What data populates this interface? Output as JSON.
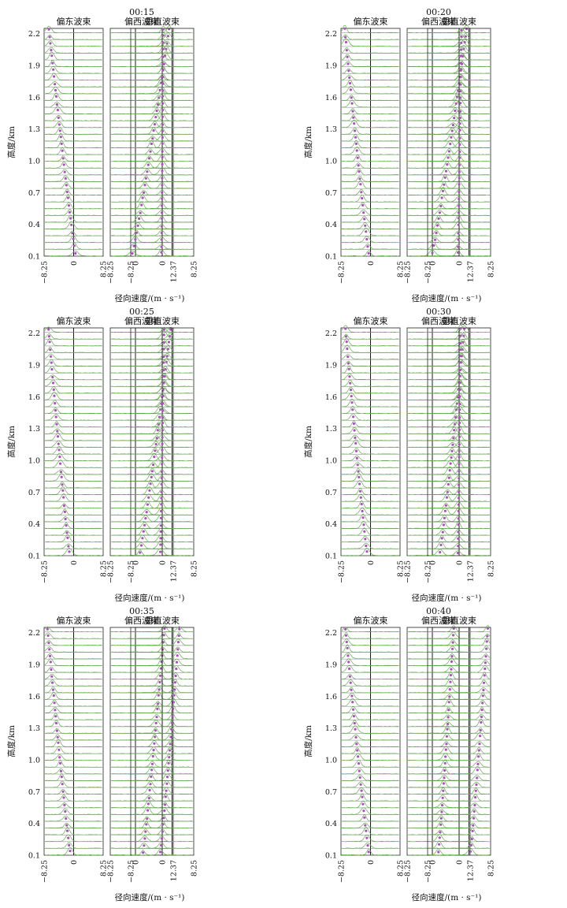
{
  "figure": {
    "left_column_title": "偏东波束",
    "middle_column_title": "偏西波束",
    "right_column_title": "垂直波束",
    "ylabel": "高度/km",
    "xlabel": "径向速度/(m · s⁻¹)"
  },
  "chart_data": [
    {
      "type": "line",
      "title": "00:15",
      "ylabel": "高度/km",
      "xlabel": "径向速度/(m · s⁻¹)",
      "height_range_km": [
        0.1,
        2.25
      ],
      "y_ticks": [
        "0.1",
        "0.4",
        "0.7",
        "1.0",
        "1.3",
        "1.6",
        "1.9",
        "2.2"
      ],
      "panels": [
        {
          "name": "偏东波束",
          "x_ticks": [
            "−8.25",
            "0",
            "8.25"
          ],
          "xlim": [
            -8.25,
            8.25
          ],
          "peak_velocity_bottom": 0.5,
          "peak_velocity_top": -6.9
        },
        {
          "name": "偏西波束",
          "x_ticks": [
            "−8.25",
            "0",
            "12.37"
          ],
          "xlim": [
            -8.25,
            12.37
          ],
          "peak_velocity_bottom": -1.0,
          "peak_velocity_top": 11.0
        },
        {
          "name": "垂直波束",
          "x_ticks": [
            "−8.25",
            "0",
            "8.25"
          ],
          "xlim": [
            -8.25,
            8.25
          ],
          "peak_velocity_bottom": -0.2,
          "peak_velocity_top": 0.3
        }
      ]
    },
    {
      "type": "line",
      "title": "00:20",
      "ylabel": "高度/km",
      "xlabel": "径向速度/(m · s⁻¹)",
      "height_range_km": [
        0.1,
        2.25
      ],
      "y_ticks": [
        "0.1",
        "0.4",
        "0.7",
        "1.0",
        "1.3",
        "1.6",
        "1.9",
        "2.2"
      ],
      "panels": [
        {
          "name": "偏东波束",
          "x_ticks": [
            "−8.25",
            "0",
            "8.25"
          ],
          "xlim": [
            -8.25,
            8.25
          ],
          "peak_velocity_bottom": -0.5,
          "peak_velocity_top": -7.2
        },
        {
          "name": "偏西波束",
          "x_ticks": [
            "−8.25",
            "0",
            "12.37"
          ],
          "xlim": [
            -8.25,
            12.37
          ],
          "peak_velocity_bottom": 0.0,
          "peak_velocity_top": 11.2
        },
        {
          "name": "垂直波束",
          "x_ticks": [
            "−8.25",
            "0",
            "8.25"
          ],
          "xlim": [
            -8.25,
            8.25
          ],
          "peak_velocity_bottom": -0.3,
          "peak_velocity_top": 0.6
        }
      ]
    },
    {
      "type": "line",
      "title": "00:25",
      "ylabel": "高度/km",
      "xlabel": "径向速度/(m · s⁻¹)",
      "height_range_km": [
        0.1,
        2.25
      ],
      "y_ticks": [
        "0.1",
        "0.4",
        "0.7",
        "1.0",
        "1.3",
        "1.6",
        "1.9",
        "2.2"
      ],
      "panels": [
        {
          "name": "偏东波束",
          "x_ticks": [
            "−8.25",
            "0",
            "8.25"
          ],
          "xlim": [
            -8.25,
            8.25
          ],
          "peak_velocity_bottom": -1.2,
          "peak_velocity_top": -7.0
        },
        {
          "name": "偏西波束",
          "x_ticks": [
            "−8.25",
            "0",
            "12.37"
          ],
          "xlim": [
            -8.25,
            12.37
          ],
          "peak_velocity_bottom": 1.5,
          "peak_velocity_top": 11.5
        },
        {
          "name": "垂直波束",
          "x_ticks": [
            "−8.25",
            "0",
            "8.25"
          ],
          "xlim": [
            -8.25,
            8.25
          ],
          "peak_velocity_bottom": -0.5,
          "peak_velocity_top": 0.5
        }
      ]
    },
    {
      "type": "line",
      "title": "00:30",
      "ylabel": "高度/km",
      "xlabel": "径向速度/(m · s⁻¹)",
      "height_range_km": [
        0.1,
        2.25
      ],
      "y_ticks": [
        "0.1",
        "0.4",
        "0.7",
        "1.0",
        "1.3",
        "1.6",
        "1.9",
        "2.2"
      ],
      "panels": [
        {
          "name": "偏东波束",
          "x_ticks": [
            "−8.25",
            "0",
            "8.25"
          ],
          "xlim": [
            -8.25,
            8.25
          ],
          "peak_velocity_bottom": -1.0,
          "peak_velocity_top": -7.0
        },
        {
          "name": "偏西波束",
          "x_ticks": [
            "−8.25",
            "0",
            "12.37"
          ],
          "xlim": [
            -8.25,
            12.37
          ],
          "peak_velocity_bottom": 2.5,
          "peak_velocity_top": 10.5
        },
        {
          "name": "垂直波束",
          "x_ticks": [
            "−8.25",
            "0",
            "8.25"
          ],
          "xlim": [
            -8.25,
            8.25
          ],
          "peak_velocity_bottom": -0.3,
          "peak_velocity_top": 0.4
        }
      ]
    },
    {
      "type": "line",
      "title": "00:35",
      "ylabel": "高度/km",
      "xlabel": "径向速度/(m · s⁻¹)",
      "height_range_km": [
        0.1,
        2.25
      ],
      "y_ticks": [
        "0.1",
        "0.4",
        "0.7",
        "1.0",
        "1.3",
        "1.6",
        "1.9",
        "2.2"
      ],
      "panels": [
        {
          "name": "偏东波束",
          "x_ticks": [
            "−8.25",
            "0",
            "8.25"
          ],
          "xlim": [
            -8.25,
            8.25
          ],
          "peak_velocity_bottom": -1.0,
          "peak_velocity_top": -7.3
        },
        {
          "name": "偏西波束",
          "x_ticks": [
            "−8.25",
            "0",
            "12.37"
          ],
          "xlim": [
            -8.25,
            12.37
          ],
          "peak_velocity_bottom": 2.5,
          "peak_velocity_top": 9.5
        },
        {
          "name": "垂直波束",
          "x_ticks": [
            "−8.25",
            "0",
            "8.25"
          ],
          "xlim": [
            -8.25,
            8.25
          ],
          "peak_velocity_bottom": -0.5,
          "peak_velocity_top": 4.5
        }
      ]
    },
    {
      "type": "line",
      "title": "00:40",
      "ylabel": "高度/km",
      "xlabel": "径向速度/(m · s⁻¹)",
      "height_range_km": [
        0.1,
        2.25
      ],
      "y_ticks": [
        "0.1",
        "0.4",
        "0.7",
        "1.0",
        "1.3",
        "1.6",
        "1.9",
        "2.2"
      ],
      "panels": [
        {
          "name": "偏东波束",
          "x_ticks": [
            "−8.25",
            "0",
            "8.25"
          ],
          "xlim": [
            -8.25,
            8.25
          ],
          "peak_velocity_bottom": -0.5,
          "peak_velocity_top": -7.0
        },
        {
          "name": "偏西波束",
          "x_ticks": [
            "−8.25",
            "0",
            "12.37"
          ],
          "xlim": [
            -8.25,
            12.37
          ],
          "peak_velocity_bottom": 2.0,
          "peak_velocity_top": 7.0
        },
        {
          "name": "垂直波束",
          "x_ticks": [
            "−8.25",
            "0",
            "8.25"
          ],
          "xlim": [
            -8.25,
            8.25
          ],
          "peak_velocity_bottom": 3.0,
          "peak_velocity_top": 7.5
        }
      ]
    }
  ]
}
